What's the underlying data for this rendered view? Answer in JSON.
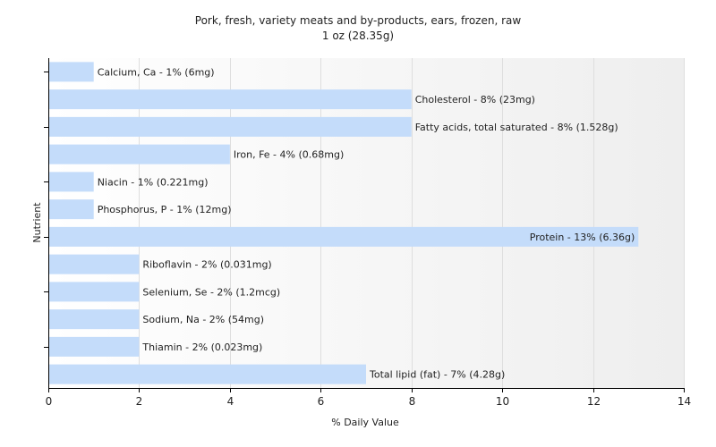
{
  "chart_data": {
    "type": "bar",
    "orientation": "horizontal",
    "title": "Pork, fresh, variety meats and by-products, ears, frozen, raw",
    "subtitle": "1 oz (28.35g)",
    "xlabel": "% Daily Value",
    "ylabel": "Nutrient",
    "xlim": [
      0,
      14
    ],
    "xticks": [
      0,
      2,
      4,
      6,
      8,
      10,
      12,
      14
    ],
    "grid": "vertical",
    "bar_color": "#c4dcfa",
    "categories": [
      "Calcium, Ca",
      "Cholesterol",
      "Fatty acids, total saturated",
      "Iron, Fe",
      "Niacin",
      "Phosphorus, P",
      "Protein",
      "Riboflavin",
      "Selenium, Se",
      "Sodium, Na",
      "Thiamin",
      "Total lipid (fat)"
    ],
    "values": [
      1,
      8,
      8,
      4,
      1,
      1,
      13,
      2,
      2,
      2,
      2,
      7
    ],
    "labels": [
      "Calcium, Ca - 1% (6mg)",
      "Cholesterol - 8% (23mg)",
      "Fatty acids, total saturated - 8% (1.528g)",
      "Iron, Fe - 4% (0.68mg)",
      "Niacin - 1% (0.221mg)",
      "Phosphorus, P - 1% (12mg)",
      "Protein - 13% (6.36g)",
      "Riboflavin - 2% (0.031mg)",
      "Selenium, Se - 2% (1.2mcg)",
      "Sodium, Na - 2% (54mg)",
      "Thiamin - 2% (0.023mg)",
      "Total lipid (fat) - 7% (4.28g)"
    ]
  }
}
